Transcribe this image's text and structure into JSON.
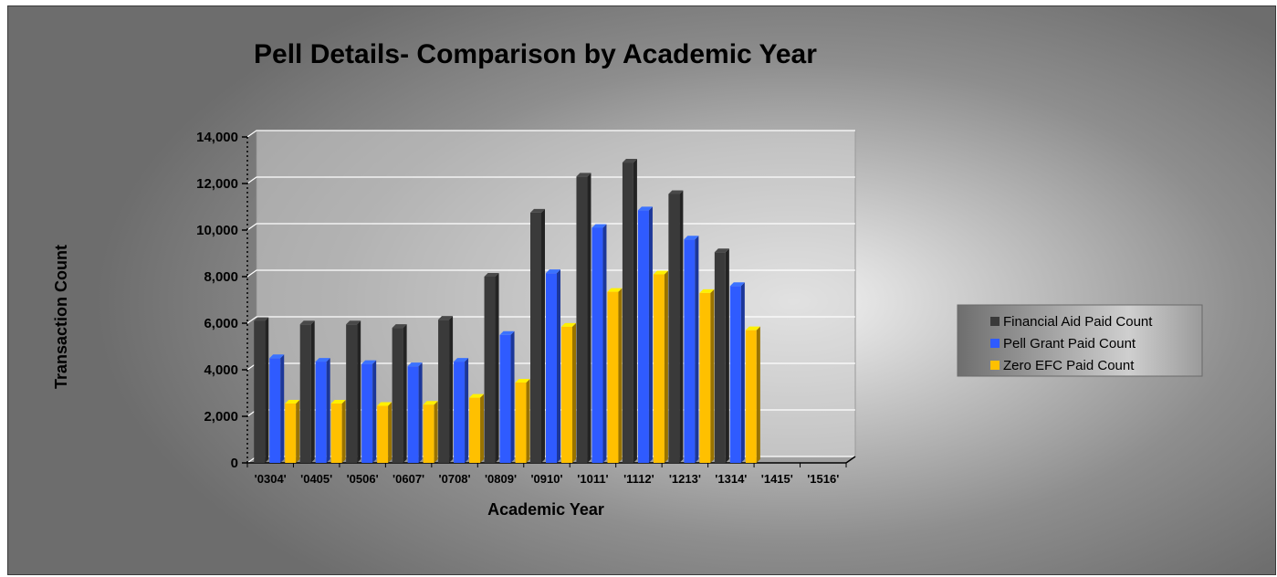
{
  "chart_data": {
    "type": "bar",
    "title": "Pell Details- Comparison by Academic Year",
    "xlabel": "Academic Year",
    "ylabel": "Transaction Count",
    "ylim": [
      0,
      14000
    ],
    "yticks": [
      0,
      2000,
      4000,
      6000,
      8000,
      10000,
      12000,
      14000
    ],
    "ytick_labels": [
      "0",
      "2,000",
      "4,000",
      "6,000",
      "8,000",
      "10,000",
      "12,000",
      "14,000"
    ],
    "grid": true,
    "legend_position": "right",
    "categories": [
      "'0304'",
      "'0405'",
      "'0506'",
      "'0607'",
      "'0708'",
      "'0809'",
      "'0910'",
      "'1011'",
      "'1112'",
      "'1213'",
      "'1314'",
      "'1415'",
      "'1516'"
    ],
    "series": [
      {
        "name": "Financial Aid Paid Count",
        "color": "#3a3a3a",
        "values": [
          6100,
          5950,
          5950,
          5800,
          6150,
          8000,
          10750,
          12300,
          12900,
          11550,
          9050,
          0,
          0
        ]
      },
      {
        "name": "Pell Grant Paid Count",
        "color": "#2f5bff",
        "values": [
          4500,
          4350,
          4250,
          4150,
          4350,
          5500,
          8150,
          10100,
          10850,
          9600,
          7600,
          0,
          0
        ]
      },
      {
        "name": "Zero EFC Paid Count",
        "color": "#ffc000",
        "values": [
          2550,
          2550,
          2450,
          2500,
          2800,
          3450,
          5850,
          7350,
          8100,
          7300,
          5700,
          0,
          0
        ]
      }
    ]
  }
}
